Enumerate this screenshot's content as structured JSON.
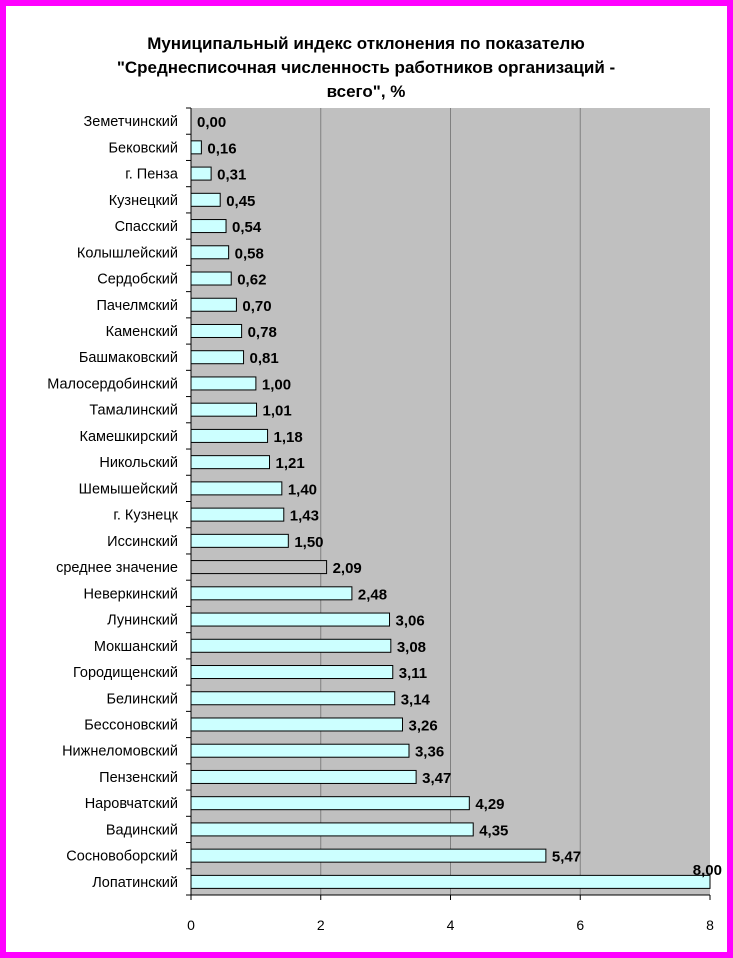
{
  "chart_data": {
    "type": "bar",
    "orientation": "horizontal",
    "title_lines": [
      "Муниципальный индекс отклонения по показателю",
      "\"Среднесписочная численность работников организаций -",
      "всего\", %"
    ],
    "categories": [
      "Земетчинский",
      "Бековский",
      "г. Пенза",
      "Кузнецкий",
      "Спасский",
      "Колышлейский",
      "Сердобский",
      "Пачелмский",
      "Каменский",
      "Башмаковский",
      "Малосердобинский",
      "Тамалинский",
      "Камешкирский",
      "Никольский",
      "Шемышейский",
      "г. Кузнецк",
      "Иссинский",
      "среднее значение",
      "Неверкинский",
      "Лунинский",
      "Мокшанский",
      "Городищенский",
      "Белинский",
      "Бессоновский",
      "Нижнеломовский",
      "Пензенский",
      "Наровчатский",
      "Вадинский",
      "Сосновоборский",
      "Лопатинский"
    ],
    "values": [
      0.0,
      0.16,
      0.31,
      0.45,
      0.54,
      0.58,
      0.62,
      0.7,
      0.78,
      0.81,
      1.0,
      1.01,
      1.18,
      1.21,
      1.4,
      1.43,
      1.5,
      2.09,
      2.48,
      3.06,
      3.08,
      3.11,
      3.14,
      3.26,
      3.36,
      3.47,
      4.29,
      4.35,
      5.47,
      8.0
    ],
    "value_labels": [
      "0,00",
      "0,16",
      "0,31",
      "0,45",
      "0,54",
      "0,58",
      "0,62",
      "0,70",
      "0,78",
      "0,81",
      "1,00",
      "1,01",
      "1,18",
      "1,21",
      "1,40",
      "1,43",
      "1,50",
      "2,09",
      "2,48",
      "3,06",
      "3,08",
      "3,11",
      "3,14",
      "3,26",
      "3,36",
      "3,47",
      "4,29",
      "4,35",
      "5,47",
      "8,00"
    ],
    "highlight_category": "среднее значение",
    "xlim": [
      0,
      8
    ],
    "xticks": [
      0,
      2,
      4,
      6,
      8
    ],
    "xtick_labels": [
      "0",
      "2",
      "4",
      "6",
      "8"
    ],
    "grid": true,
    "colors": {
      "border": "#ff00ff",
      "plot_bg": "#c0c0c0",
      "bar": "#ccffff",
      "highlight_bar": "#c0c0c0",
      "gridline": "#808080"
    }
  }
}
